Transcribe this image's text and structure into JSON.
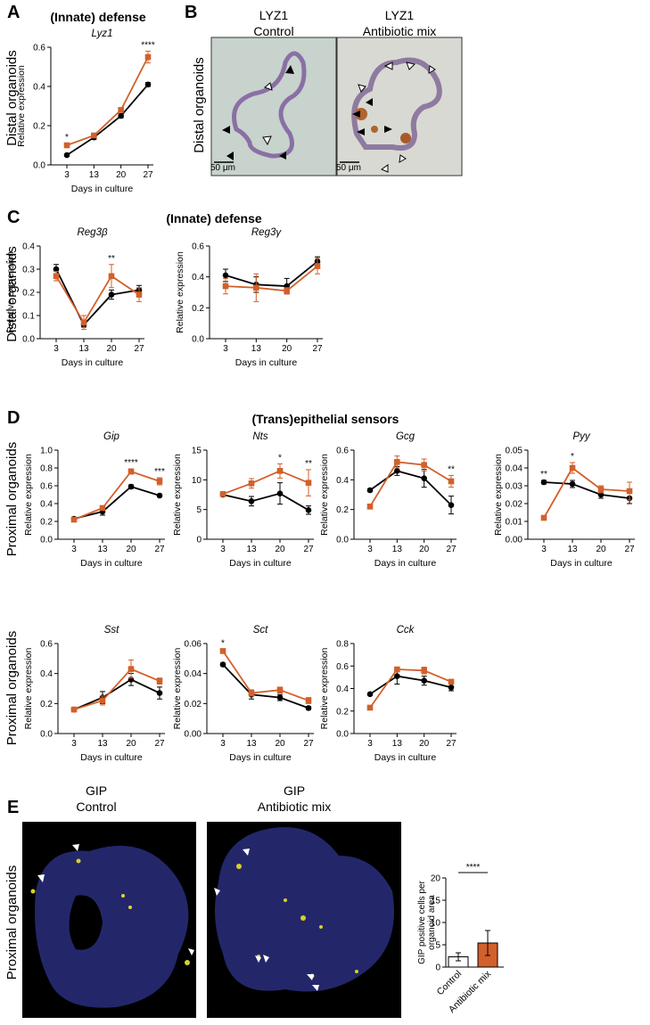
{
  "panel_labels": [
    "A",
    "B",
    "C",
    "D",
    "E"
  ],
  "row_labels": [
    "Distal organoids",
    "Distal organoids",
    "Distal organoids",
    "Proximal organoids",
    "Proximal organoids",
    "Proximal organoids"
  ],
  "group_titles": [
    "(Innate) defense",
    "(Innate) defense",
    "(Trans)epithelial sensors"
  ],
  "images": [
    {
      "title": "LYZ1",
      "subtitle": "Control",
      "scale_bar": "50 μm"
    },
    {
      "title": "LYZ1",
      "subtitle": "Antibiotic mix",
      "scale_bar": "50 μm"
    },
    {
      "title": "GIP",
      "subtitle": "Control"
    },
    {
      "title": "GIP",
      "subtitle": "Antibiotic mix"
    }
  ],
  "chart_data": [
    {
      "type": "line",
      "title": "Lyz1",
      "xlabel": "Days in culture",
      "ylabel": "Relative expression",
      "categories": [
        "3",
        "13",
        "20",
        "27"
      ],
      "ylim": [
        0,
        0.6
      ],
      "yticks": [
        {
          "value": 0,
          "label": "0.0"
        },
        0.2,
        0.4,
        0.6
      ],
      "annotations": [
        "*",
        null,
        null,
        "****"
      ],
      "series": [
        {
          "color": "#000000",
          "marker": "circle",
          "values": [
            0.05,
            0.14,
            0.25,
            0.41
          ],
          "errors": [
            0.005,
            0.01,
            0.01,
            0.01
          ]
        },
        {
          "color": "#d2602a",
          "marker": "square",
          "values": [
            0.1,
            0.15,
            0.28,
            0.55
          ],
          "errors": [
            0.01,
            0.01,
            0.01,
            0.03
          ]
        }
      ]
    },
    {
      "type": "line",
      "title": "Reg3β",
      "xlabel": "Days in culture",
      "ylabel": "Relative expression",
      "categories": [
        "3",
        "13",
        "20",
        "27"
      ],
      "ylim": [
        0,
        0.4
      ],
      "yticks": [
        {
          "value": 0,
          "label": "0.0"
        },
        0.1,
        0.2,
        0.3,
        0.4
      ],
      "annotations": [
        null,
        null,
        "**",
        null
      ],
      "series": [
        {
          "color": "#000000",
          "marker": "circle",
          "values": [
            0.3,
            0.06,
            0.19,
            0.21
          ],
          "errors": [
            0.02,
            0.01,
            0.02,
            0.02
          ]
        },
        {
          "color": "#d2602a",
          "marker": "square",
          "values": [
            0.27,
            0.07,
            0.27,
            0.19
          ],
          "errors": [
            0.02,
            0.03,
            0.05,
            0.03
          ]
        }
      ]
    },
    {
      "type": "line",
      "title": "Reg3γ",
      "xlabel": "Days in culture",
      "ylabel": "Relative expression",
      "categories": [
        "3",
        "13",
        "20",
        "27"
      ],
      "ylim": [
        0,
        0.6
      ],
      "yticks": [
        {
          "value": 0,
          "label": "0.0"
        },
        0.2,
        0.4,
        0.6
      ],
      "annotations": [
        null,
        null,
        null,
        null
      ],
      "series": [
        {
          "color": "#000000",
          "marker": "circle",
          "values": [
            0.41,
            0.35,
            0.34,
            0.5
          ],
          "errors": [
            0.04,
            0.05,
            0.05,
            0.03
          ]
        },
        {
          "color": "#d2602a",
          "marker": "square",
          "values": [
            0.34,
            0.33,
            0.31,
            0.47
          ],
          "errors": [
            0.05,
            0.09,
            0.02,
            0.05
          ]
        }
      ]
    },
    {
      "type": "line",
      "title": "Gip",
      "xlabel": "Days in culture",
      "ylabel": "Relative expression",
      "categories": [
        "3",
        "13",
        "20",
        "27"
      ],
      "ylim": [
        0,
        1
      ],
      "yticks": [
        {
          "value": 0,
          "label": "0.0"
        },
        0.2,
        0.4,
        0.6,
        0.8,
        {
          "value": 1,
          "label": "1.0"
        }
      ],
      "annotations": [
        null,
        null,
        "****",
        "***"
      ],
      "series": [
        {
          "color": "#000000",
          "marker": "circle",
          "values": [
            0.23,
            0.31,
            0.59,
            0.49
          ],
          "errors": [
            0.01,
            0.04,
            0.02,
            0.01
          ]
        },
        {
          "color": "#d2602a",
          "marker": "square",
          "values": [
            0.22,
            0.35,
            0.76,
            0.65
          ],
          "errors": [
            0.01,
            0.02,
            0.03,
            0.04
          ]
        }
      ]
    },
    {
      "type": "line",
      "title": "Nts",
      "xlabel": "Days in culture",
      "ylabel": "Relative expression",
      "categories": [
        "3",
        "13",
        "20",
        "27"
      ],
      "ylim": [
        0,
        15
      ],
      "yticks": [
        0,
        5,
        10,
        15
      ],
      "annotations": [
        null,
        null,
        "*",
        "**"
      ],
      "series": [
        {
          "color": "#000000",
          "marker": "circle",
          "values": [
            7.5,
            6.4,
            7.7,
            4.9
          ],
          "errors": [
            0.3,
            0.8,
            1.8,
            0.7
          ]
        },
        {
          "color": "#d2602a",
          "marker": "square",
          "values": [
            7.6,
            9.4,
            11.5,
            9.5
          ],
          "errors": [
            0.3,
            0.8,
            1.2,
            2.2
          ]
        }
      ]
    },
    {
      "type": "line",
      "title": "Gcg",
      "xlabel": "Days in culture",
      "ylabel": "Relative expression",
      "categories": [
        "3",
        "13",
        "20",
        "27"
      ],
      "ylim": [
        0,
        0.6
      ],
      "yticks": [
        {
          "value": 0,
          "label": "0.0"
        },
        0.2,
        0.4,
        0.6
      ],
      "annotations": [
        null,
        null,
        null,
        "**"
      ],
      "series": [
        {
          "color": "#000000",
          "marker": "circle",
          "values": [
            0.33,
            0.46,
            0.41,
            0.23
          ],
          "errors": [
            0.01,
            0.03,
            0.06,
            0.06
          ]
        },
        {
          "color": "#d2602a",
          "marker": "square",
          "values": [
            0.22,
            0.52,
            0.5,
            0.39
          ],
          "errors": [
            0.01,
            0.04,
            0.04,
            0.04
          ]
        }
      ]
    },
    {
      "type": "line",
      "title": "Pyy",
      "xlabel": "Days in culture",
      "ylabel": "Relative expression",
      "categories": [
        "3",
        "13",
        "20",
        "27"
      ],
      "ylim": [
        0,
        0.05
      ],
      "yticks": [
        {
          "value": 0,
          "label": "0.00"
        },
        0.01,
        0.02,
        0.03,
        0.04,
        0.05
      ],
      "annotations": [
        "**",
        "*",
        null,
        null
      ],
      "series": [
        {
          "color": "#000000",
          "marker": "circle",
          "values": [
            0.032,
            0.031,
            0.025,
            0.023
          ],
          "errors": [
            0.001,
            0.002,
            0.002,
            0.003
          ]
        },
        {
          "color": "#d2602a",
          "marker": "square",
          "values": [
            0.012,
            0.04,
            0.028,
            0.027
          ],
          "errors": [
            0.001,
            0.003,
            0.002,
            0.005
          ]
        }
      ]
    },
    {
      "type": "line",
      "title": "Sst",
      "xlabel": "Days in culture",
      "ylabel": "Relative expression",
      "categories": [
        "3",
        "13",
        "20",
        "27"
      ],
      "ylim": [
        0,
        0.6
      ],
      "yticks": [
        {
          "value": 0,
          "label": "0.0"
        },
        0.2,
        0.4,
        0.6
      ],
      "annotations": [
        null,
        null,
        null,
        null
      ],
      "series": [
        {
          "color": "#000000",
          "marker": "circle",
          "values": [
            0.16,
            0.24,
            0.36,
            0.27
          ],
          "errors": [
            0.005,
            0.04,
            0.04,
            0.04
          ]
        },
        {
          "color": "#d2602a",
          "marker": "square",
          "values": [
            0.16,
            0.22,
            0.43,
            0.35
          ],
          "errors": [
            0.005,
            0.03,
            0.06,
            0.02
          ]
        }
      ]
    },
    {
      "type": "line",
      "title": "Sct",
      "xlabel": "Days in culture",
      "ylabel": "Relative expression",
      "categories": [
        "3",
        "13",
        "20",
        "27"
      ],
      "ylim": [
        0,
        0.06
      ],
      "yticks": [
        {
          "value": 0,
          "label": "0.00"
        },
        0.02,
        0.04,
        0.06
      ],
      "annotations": [
        "*",
        null,
        null,
        null
      ],
      "series": [
        {
          "color": "#000000",
          "marker": "circle",
          "values": [
            0.046,
            0.026,
            0.024,
            0.017
          ],
          "errors": [
            0.001,
            0.003,
            0.002,
            0.001
          ]
        },
        {
          "color": "#d2602a",
          "marker": "square",
          "values": [
            0.055,
            0.027,
            0.029,
            0.022
          ],
          "errors": [
            0.001,
            0.002,
            0.002,
            0.002
          ]
        }
      ]
    },
    {
      "type": "line",
      "title": "Cck",
      "xlabel": "Days in culture",
      "ylabel": "Relative expression",
      "categories": [
        "3",
        "13",
        "20",
        "27"
      ],
      "ylim": [
        0,
        0.8
      ],
      "yticks": [
        {
          "value": 0,
          "label": "0.0"
        },
        0.2,
        0.4,
        0.6,
        0.8
      ],
      "annotations": [
        null,
        null,
        null,
        null
      ],
      "series": [
        {
          "color": "#000000",
          "marker": "circle",
          "values": [
            0.35,
            0.51,
            0.47,
            0.41
          ],
          "errors": [
            0.01,
            0.07,
            0.04,
            0.03
          ]
        },
        {
          "color": "#d2602a",
          "marker": "square",
          "values": [
            0.23,
            0.57,
            0.56,
            0.46
          ],
          "errors": [
            0.01,
            0.02,
            0.03,
            0.02
          ]
        }
      ]
    },
    {
      "type": "bar",
      "ylabel": [
        "GIP positive cells per",
        "organoid area"
      ],
      "categories": [
        "Control",
        "Antibiotic mix"
      ],
      "values": [
        2.3,
        5.4
      ],
      "errors": [
        0.9,
        2.8
      ],
      "colors": [
        "#ffffff",
        "#d2602a"
      ],
      "ylim": [
        0,
        20
      ],
      "yticks": [
        0,
        5,
        10,
        15,
        20
      ],
      "annotation": "****"
    }
  ]
}
